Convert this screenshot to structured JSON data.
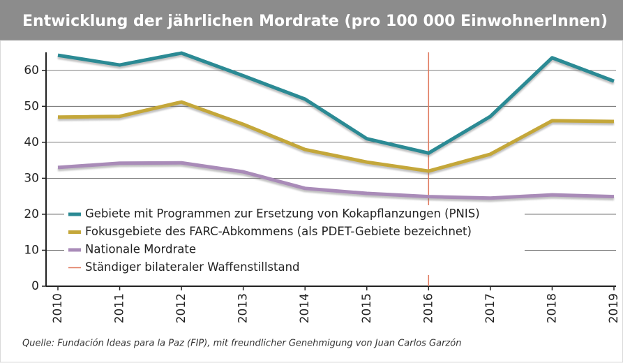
{
  "chart_data": {
    "type": "line",
    "title": "Entwicklung der jährlichen Mordrate (pro 100 000 EinwohnerInnen)",
    "categories": [
      "2010",
      "2011",
      "2012",
      "2013",
      "2014",
      "2015",
      "2016",
      "2017",
      "2018",
      "2019"
    ],
    "series": [
      {
        "name": "Gebiete mit Programmen zur Ersetzung von Kokapflanzungen (PNIS)",
        "color": "#2b8a94",
        "values": [
          64.2,
          61.5,
          64.8,
          58.5,
          52,
          41,
          37,
          47.2,
          63.5,
          57
        ]
      },
      {
        "name": "Fokusgebiete des FARC-Abkommens (als PDET-Gebiete bezeichnet)",
        "color": "#c4a73a",
        "values": [
          47,
          47.2,
          51.2,
          45,
          38,
          34.5,
          32,
          36.7,
          46,
          45.8
        ]
      },
      {
        "name": "Nationale Mordrate",
        "color": "#a98bb8",
        "values": [
          33,
          34.2,
          34.3,
          31.8,
          27.2,
          25.8,
          24.9,
          24.5,
          25.4,
          24.9
        ]
      }
    ],
    "vline": {
      "at": "2016",
      "name": "Ständiger bilateraler Waffenstillstand",
      "color": "#e0785c"
    },
    "ylim": [
      0,
      65
    ],
    "yticks": [
      0,
      10,
      20,
      30,
      40,
      50,
      60
    ],
    "grid": true,
    "source": "Quelle: Fundación Ideas para la Paz (FIP), mit freundlicher Genehmigung von Juan Carlos Garzón"
  }
}
